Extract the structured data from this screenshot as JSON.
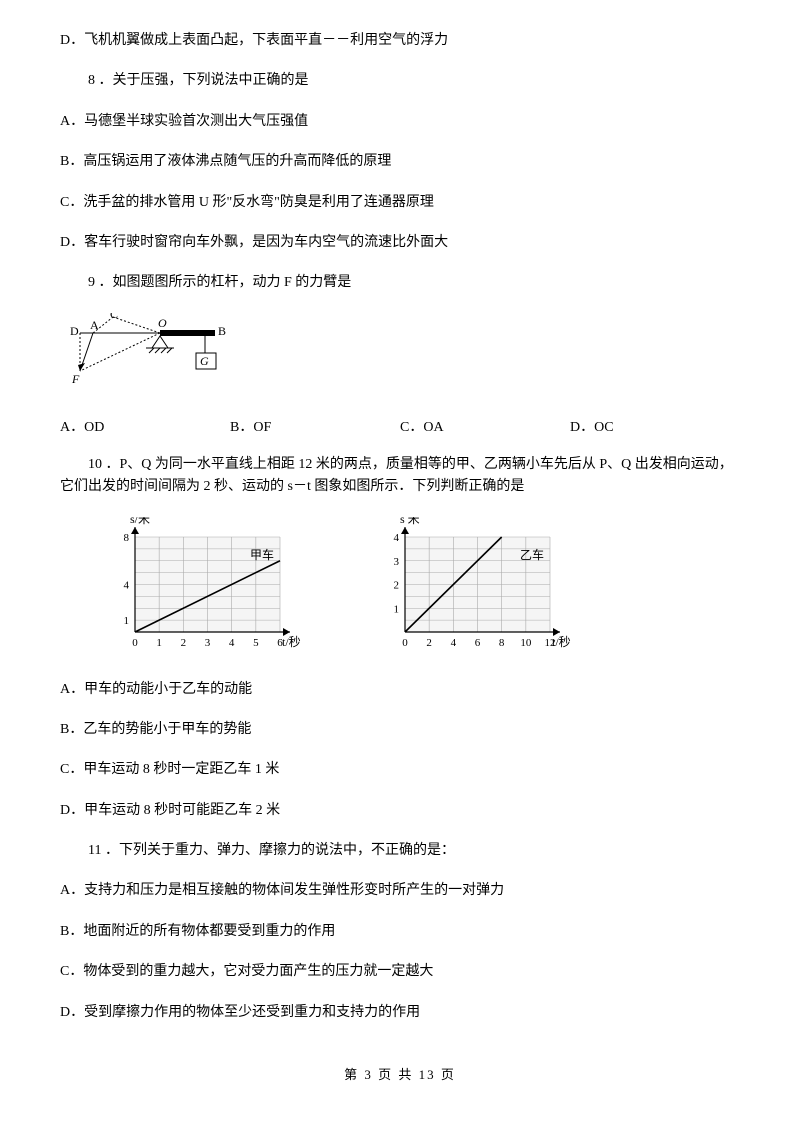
{
  "q7_optionD": "D．飞机机翼做成上表面凸起，下表面平直－－利用空气的浮力",
  "q8": {
    "stem": "8 ．关于压强，下列说法中正确的是",
    "A": "A．马德堡半球实验首次测出大气压强值",
    "B": "B．高压锅运用了液体沸点随气压的升高而降低的原理",
    "C": "C．洗手盆的排水管用 U 形\"反水弯\"防臭是利用了连通器原理",
    "D": "D．客车行驶时窗帘向车外飘，是因为车内空气的流速比外面大"
  },
  "q9": {
    "stem": "9 ．如图题图所示的杠杆，动力 F 的力臂是",
    "A": "A．OD",
    "B": "B．OF",
    "C": "C．OA",
    "D": "D．OC",
    "labels": {
      "D": "D",
      "A": "A",
      "C": "C",
      "O": "O",
      "B": "B",
      "F": "F",
      "G": "G"
    }
  },
  "q10": {
    "stem": "10 ．P、Q 为同一水平直线上相距 12 米的两点，质量相等的甲、乙两辆小车先后从 P、Q 出发相向运动，它们出发的时间间隔为 2 秒、运动的 s－t 图象如图所示．下列判断正确的是",
    "A": "A．甲车的动能小于乙车的动能",
    "B": "B．乙车的势能小于甲车的势能",
    "C": "C．甲车运动 8 秒时一定距乙车 1 米",
    "D": "D．甲车运动 8 秒时可能距乙车 2 米",
    "chart1": {
      "ylabel": "s/米",
      "xlabel": "t/秒",
      "title": "甲车",
      "xticks": [
        "0",
        "1",
        "2",
        "3",
        "4",
        "5",
        "6"
      ],
      "yticks": [
        "1",
        "4",
        "8"
      ],
      "xmax": 6,
      "ymax": 8,
      "line": [
        [
          0,
          0
        ],
        [
          6,
          6
        ]
      ],
      "bg": "#f5f5f5",
      "grid": "#aaaaaa",
      "axis": "#000000",
      "curve": "#000000"
    },
    "chart2": {
      "ylabel": "s 米",
      "xlabel": "t/秒",
      "title": "乙车",
      "xticks": [
        "0",
        "2",
        "4",
        "6",
        "8",
        "10",
        "12"
      ],
      "yticks": [
        "1",
        "2",
        "3",
        "4"
      ],
      "xmax": 12,
      "ymax": 4,
      "line": [
        [
          0,
          0
        ],
        [
          8,
          4
        ]
      ],
      "bg": "#f5f5f5",
      "grid": "#aaaaaa",
      "axis": "#000000",
      "curve": "#000000"
    }
  },
  "q11": {
    "stem": "11 ．下列关于重力、弹力、摩擦力的说法中，不正确的是：",
    "A": "A．支持力和压力是相互接触的物体间发生弹性形变时所产生的一对弹力",
    "B": "B．地面附近的所有物体都要受到重力的作用",
    "C": "C．物体受到的重力越大，它对受力面产生的压力就一定越大",
    "D": "D．受到摩擦力作用的物体至少还受到重力和支持力的作用"
  },
  "footer": "第 3 页 共 13 页"
}
